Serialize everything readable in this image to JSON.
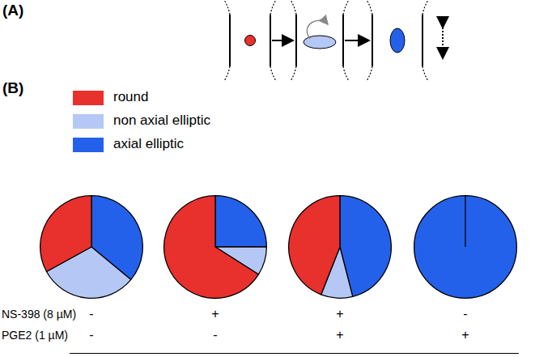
{
  "figure": {
    "panels": [
      {
        "label": "(A)"
      },
      {
        "label": "(B)"
      }
    ]
  },
  "chart_data": [
    {
      "type": "pie",
      "legend": "top-left",
      "categories": [
        "round",
        "non axial elliptic",
        "axial elliptic"
      ],
      "values": [
        33,
        31,
        36
      ],
      "colors": [
        "#e8302d",
        "#b5c8f5",
        "#2461eb"
      ]
    },
    {
      "type": "pie",
      "categories": [
        "round",
        "non axial elliptic",
        "axial elliptic"
      ],
      "values": [
        66,
        9,
        25
      ],
      "colors": [
        "#e8302d",
        "#b5c8f5",
        "#2461eb"
      ]
    },
    {
      "type": "pie",
      "categories": [
        "round",
        "non axial elliptic",
        "axial elliptic"
      ],
      "values": [
        44,
        10,
        46
      ],
      "colors": [
        "#e8302d",
        "#b5c8f5",
        "#2461eb"
      ]
    },
    {
      "type": "pie",
      "categories": [
        "round",
        "non axial elliptic",
        "axial elliptic"
      ],
      "values": [
        0,
        0,
        100
      ],
      "colors": [
        "#e8302d",
        "#b5c8f5",
        "#2461eb"
      ]
    }
  ],
  "treatments": [
    {
      "label": "NS-398 (8 µM)",
      "values": [
        "-",
        "+",
        "+",
        "-"
      ]
    },
    {
      "label": "PGE2 (1 µM)",
      "values": [
        "-",
        "-",
        "+",
        "+"
      ]
    }
  ]
}
